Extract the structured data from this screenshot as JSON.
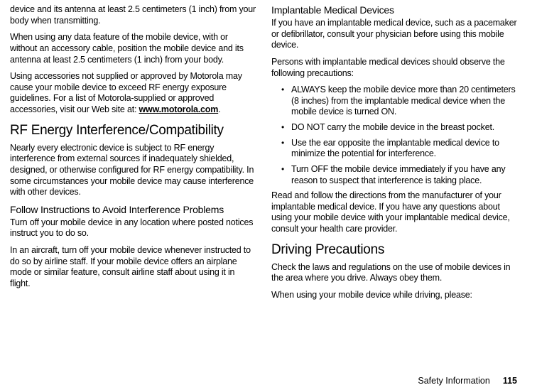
{
  "left": {
    "p1": "device and its antenna at least 2.5 centimeters (1 inch) from your body when transmitting.",
    "p2": "When using any data feature of the mobile device, with or without an accessory cable, position the mobile device and its antenna at least 2.5 centimeters (1 inch) from your body.",
    "p3_a": "Using accessories not supplied or approved by Motorola may cause your mobile device to exceed RF energy exposure guidelines. For a list of Motorola-supplied or approved accessories, visit our Web site at: ",
    "p3_link": "www.motorola.com",
    "p3_b": ".",
    "h1_1": "RF Energy Interference/Compatibility",
    "p4": "Nearly every electronic device is subject to RF energy interference from external sources if inadequately shielded, designed, or otherwise configured for RF energy compatibility. In some circumstances your mobile device may cause interference with other devices.",
    "h2_1": "Follow Instructions to Avoid Interference Problems",
    "p5": "Turn off your mobile device in any location where posted notices instruct you to do so.",
    "p6": "In an aircraft, turn off your mobile device whenever instructed to do so by airline staff. If your mobile device offers an airplane mode or similar feature, consult airline staff about using it in flight."
  },
  "right": {
    "h2_1": "Implantable Medical Devices",
    "p1": "If you have an implantable medical device, such as a pacemaker or defibrillator, consult your physician before using this mobile device.",
    "p2": "Persons with implantable medical devices should observe the following precautions:",
    "b1": "ALWAYS keep the mobile device more than 20 centimeters (8 inches) from the implantable medical device when the mobile device is turned ON.",
    "b2": "DO NOT carry the mobile device in the breast pocket.",
    "b3": "Use the ear opposite the implantable medical device to minimize the potential for interference.",
    "b4": "Turn OFF the mobile device immediately if you have any reason to suspect that interference is taking place.",
    "p3": "Read and follow the directions from the manufacturer of your implantable medical device. If you have any questions about using your  mobile device with  your implantable medical device, consult your health care provider.",
    "h1_1": "Driving Precautions",
    "p4": "Check the laws and regulations on the use of mobile devices in the area where you drive. Always obey them.",
    "p5": "When using your mobile device while driving, please:"
  },
  "footer": {
    "label": "Safety Information",
    "page": "115"
  }
}
